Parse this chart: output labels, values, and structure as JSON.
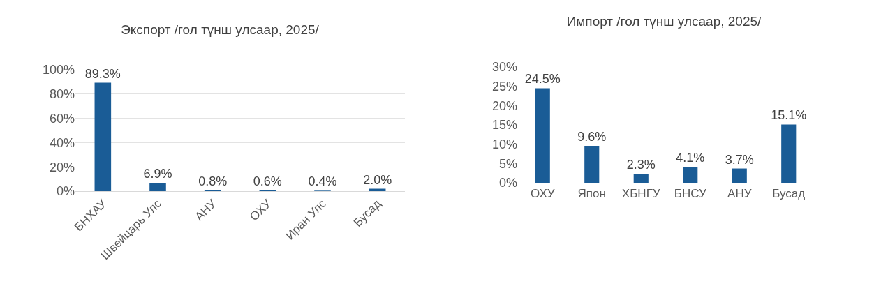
{
  "chart_data": [
    {
      "type": "bar",
      "title": "Экспорт /гол түнш улсаар, 2025/",
      "categories": [
        "БНХАУ",
        "Швейцарь Улс",
        "АНУ",
        "ОХУ",
        "Иран Улс",
        "Бусад"
      ],
      "values": [
        89.3,
        6.9,
        0.8,
        0.6,
        0.4,
        2.0
      ],
      "value_labels": [
        "89.3%",
        "6.9%",
        "0.8%",
        "0.6%",
        "0.4%",
        "2.0%"
      ],
      "color": "#1a5c96",
      "ylim": [
        0,
        100
      ],
      "yticks": [
        {
          "value": 0,
          "label": "0%"
        },
        {
          "value": 20,
          "label": "20%"
        },
        {
          "value": 40,
          "label": "40%"
        },
        {
          "value": 60,
          "label": "60%"
        },
        {
          "value": 80,
          "label": "80%"
        },
        {
          "value": 100,
          "label": "100%"
        }
      ],
      "grid": "y"
    },
    {
      "type": "bar",
      "title": "Импорт /гол түнш улсаар, 2025/",
      "categories": [
        "ОХУ",
        "Япон",
        "ХБНГУ",
        "БНСУ",
        "АНУ",
        "Бусад"
      ],
      "values": [
        24.5,
        9.6,
        2.3,
        4.1,
        3.7,
        15.1
      ],
      "value_labels": [
        "24.5%",
        "9.6%",
        "2.3%",
        "4.1%",
        "3.7%",
        "15.1%"
      ],
      "color": "#1a5c96",
      "ylim": [
        0,
        30
      ],
      "yticks": [
        {
          "value": 0,
          "label": "0%"
        },
        {
          "value": 5,
          "label": "5%"
        },
        {
          "value": 10,
          "label": "10%"
        },
        {
          "value": 15,
          "label": "15%"
        },
        {
          "value": 20,
          "label": "20%"
        },
        {
          "value": 25,
          "label": "25%"
        },
        {
          "value": 30,
          "label": "30%"
        }
      ]
    }
  ]
}
